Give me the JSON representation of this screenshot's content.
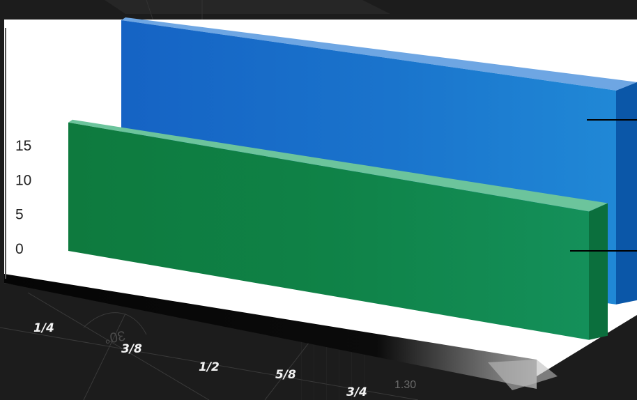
{
  "chart_data": {
    "type": "bar",
    "style": "3d",
    "categories": [
      "1/4",
      "3/8",
      "1/2",
      "5/8",
      "3/4"
    ],
    "y_ticks": [
      "0",
      "5",
      "10",
      "15"
    ],
    "ylim": [
      0,
      15
    ],
    "grid": false,
    "series": [
      {
        "values": [
          15,
          15,
          15,
          15,
          15
        ],
        "color": "#1e78c8"
      },
      {
        "values": [
          9,
          9,
          9,
          9,
          9
        ],
        "color": "#10844a"
      }
    ],
    "colors": {
      "background": "#1c1c1c",
      "back_panel": "#ffffff",
      "floor": "#000000"
    }
  },
  "background_marks": [
    "30°",
    "1.30"
  ]
}
